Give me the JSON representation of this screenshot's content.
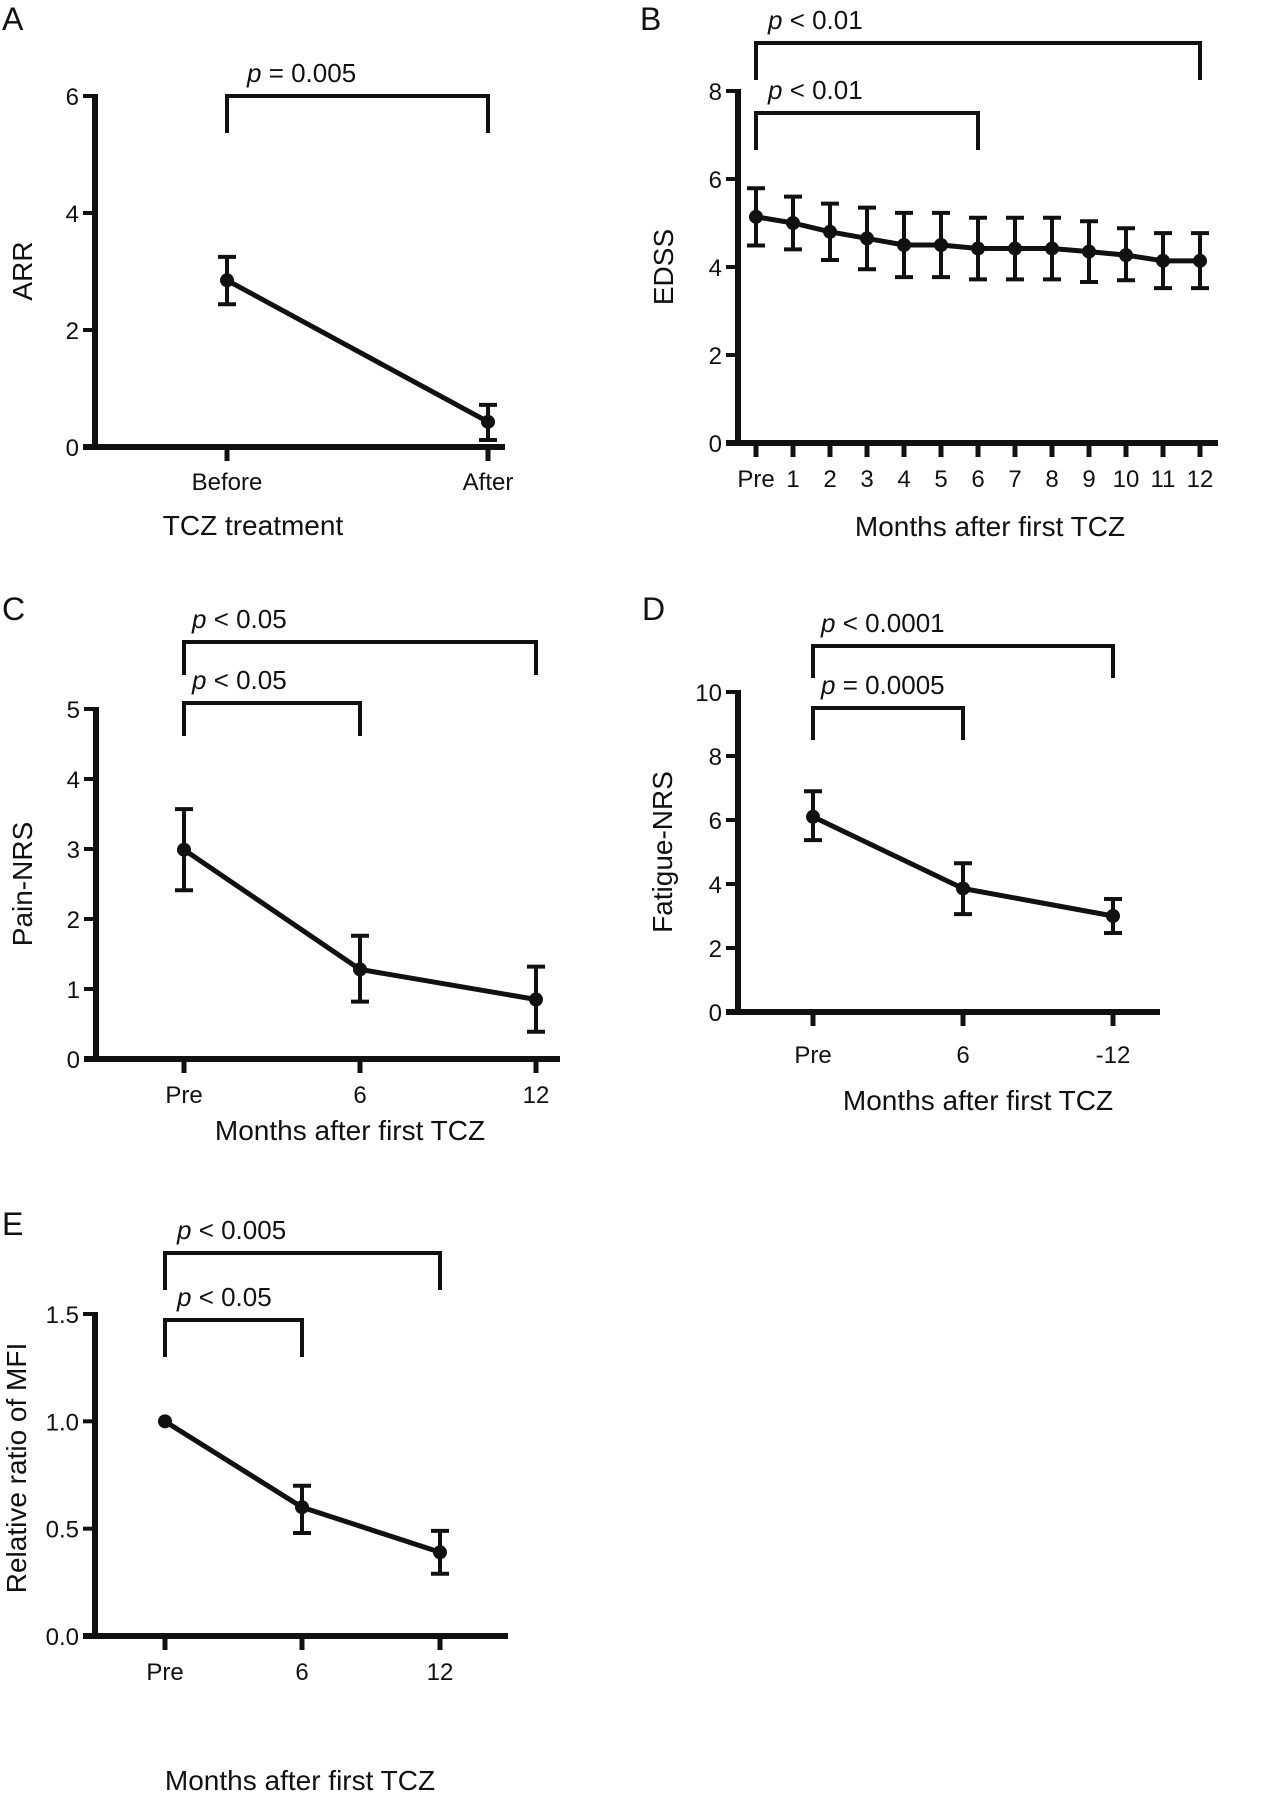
{
  "colors": {
    "ink": "#111111",
    "background": "#ffffff"
  },
  "chart_data": [
    {
      "panel": "A",
      "type": "line",
      "xlabel": "TCZ treatment",
      "ylabel": "ARR",
      "categories": [
        "Before",
        "After"
      ],
      "ylim": [
        0,
        6
      ],
      "yticks": [
        0,
        2,
        4,
        6
      ],
      "ytick_labels": [
        "0",
        "2",
        "4",
        "6"
      ],
      "grid": false,
      "series": [
        {
          "name": "ARR",
          "values": [
            2.85,
            0.43
          ],
          "err_upper": [
            3.25,
            0.72
          ],
          "err_lower": [
            2.44,
            0.12
          ]
        }
      ],
      "annotations": [
        {
          "from": "Before",
          "to": "After",
          "p_symbol": "p",
          "text": " = 0.005",
          "level": 1
        }
      ]
    },
    {
      "panel": "B",
      "type": "line",
      "xlabel": "Months after first TCZ",
      "ylabel": "EDSS",
      "categories": [
        "Pre",
        "1",
        "2",
        "3",
        "4",
        "5",
        "6",
        "7",
        "8",
        "9",
        "10",
        "11",
        "12"
      ],
      "ylim": [
        0,
        8
      ],
      "yticks": [
        0,
        2,
        4,
        6,
        8
      ],
      "ytick_labels": [
        "0",
        "2",
        "4",
        "6",
        "8"
      ],
      "grid": false,
      "series": [
        {
          "name": "EDSS",
          "values": [
            5.14,
            5.0,
            4.8,
            4.65,
            4.5,
            4.5,
            4.42,
            4.42,
            4.42,
            4.35,
            4.27,
            4.14,
            4.14
          ],
          "err_upper": [
            5.79,
            5.6,
            5.44,
            5.35,
            5.23,
            5.23,
            5.12,
            5.12,
            5.12,
            5.04,
            4.88,
            4.77,
            4.77
          ],
          "err_lower": [
            4.49,
            4.4,
            4.16,
            3.95,
            3.77,
            3.77,
            3.72,
            3.72,
            3.72,
            3.66,
            3.7,
            3.52,
            3.52
          ]
        }
      ],
      "annotations": [
        {
          "from": "Pre",
          "to": "12",
          "p_symbol": "p",
          "text": " < 0.01",
          "level": 2
        },
        {
          "from": "Pre",
          "to": "6",
          "p_symbol": "p",
          "text": " < 0.01",
          "level": 1
        }
      ]
    },
    {
      "panel": "C",
      "type": "line",
      "xlabel": "Months after first TCZ",
      "ylabel": "Pain-NRS",
      "categories": [
        "Pre",
        "6",
        "12"
      ],
      "ylim": [
        0,
        5
      ],
      "yticks": [
        0,
        1,
        2,
        3,
        4,
        5
      ],
      "ytick_labels": [
        "0",
        "1",
        "2",
        "3",
        "4",
        "5"
      ],
      "grid": false,
      "series": [
        {
          "name": "Pain-NRS",
          "values": [
            2.99,
            1.28,
            0.85
          ],
          "err_upper": [
            3.57,
            1.76,
            1.32
          ],
          "err_lower": [
            2.41,
            0.82,
            0.39
          ]
        }
      ],
      "annotations": [
        {
          "from": "Pre",
          "to": "12",
          "p_symbol": "p",
          "text": " < 0.05",
          "level": 2
        },
        {
          "from": "Pre",
          "to": "6",
          "p_symbol": "p",
          "text": " < 0.05",
          "level": 1
        }
      ]
    },
    {
      "panel": "D",
      "type": "line",
      "xlabel": "Months after first TCZ",
      "ylabel": "Fatigue-NRS",
      "categories": [
        "Pre",
        "6",
        "-12"
      ],
      "ylim": [
        0,
        10
      ],
      "yticks": [
        0,
        2,
        4,
        6,
        8,
        10
      ],
      "ytick_labels": [
        "0",
        "2",
        "4",
        "6",
        "8",
        "10"
      ],
      "grid": false,
      "series": [
        {
          "name": "Fatigue-NRS",
          "values": [
            6.1,
            3.86,
            3.0
          ],
          "err_upper": [
            6.9,
            4.65,
            3.53
          ],
          "err_lower": [
            5.37,
            3.06,
            2.47
          ]
        }
      ],
      "annotations": [
        {
          "from": "Pre",
          "to": "-12",
          "p_symbol": "p",
          "text": " < 0.0001",
          "level": 2
        },
        {
          "from": "Pre",
          "to": "6",
          "p_symbol": "p",
          "text": " = 0.0005",
          "level": 1
        }
      ]
    },
    {
      "panel": "E",
      "type": "line",
      "xlabel": "Months after first TCZ",
      "ylabel": "Relative ratio of MFI",
      "categories": [
        "Pre",
        "6",
        "12"
      ],
      "ylim": [
        0,
        1.5
      ],
      "yticks": [
        0,
        0.5,
        1.0,
        1.5
      ],
      "ytick_labels": [
        "0.0",
        "0.5",
        "1.0",
        "1.5"
      ],
      "grid": false,
      "series": [
        {
          "name": "Relative ratio of MFI",
          "values": [
            1.0,
            0.6,
            0.39
          ],
          "err_upper": [
            1.0,
            0.7,
            0.49
          ],
          "err_lower": [
            1.0,
            0.48,
            0.29
          ]
        }
      ],
      "annotations": [
        {
          "from": "Pre",
          "to": "12",
          "p_symbol": "p",
          "text": " < 0.005",
          "level": 2
        },
        {
          "from": "Pre",
          "to": "6",
          "p_symbol": "p",
          "text": " < 0.05",
          "level": 1
        }
      ]
    }
  ]
}
